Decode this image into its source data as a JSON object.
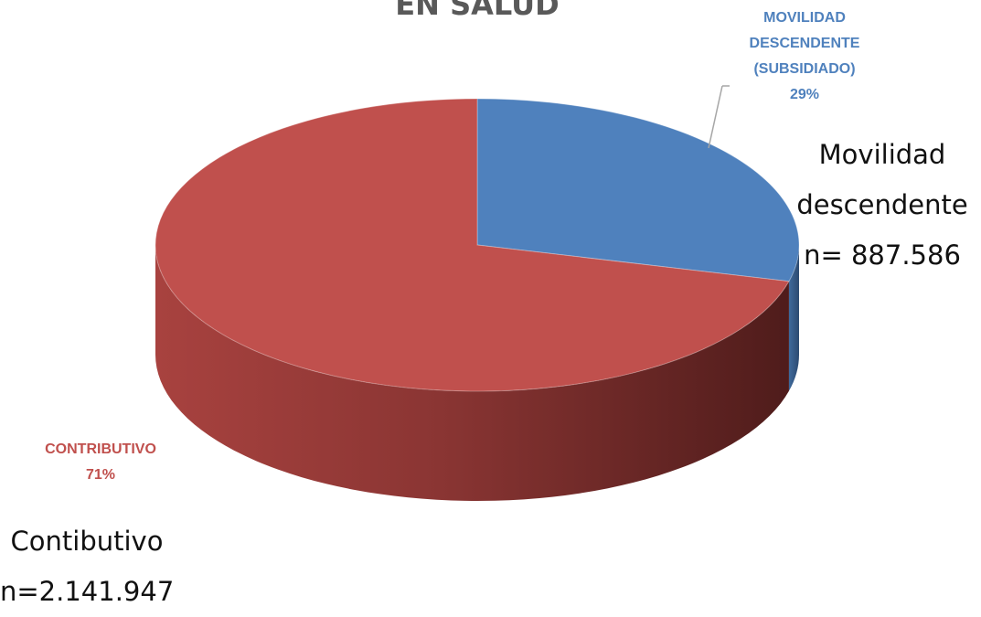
{
  "chart_data": {
    "type": "pie",
    "title": "EN SALUD",
    "categories": [
      "MOVILIDAD DESCENDENTE (SUBSIDIADO)",
      "CONTRIBUTIVO"
    ],
    "values": [
      29,
      71
    ],
    "value_labels": [
      "29%",
      "71%"
    ],
    "colors": [
      "#4f81bd",
      "#c0504d"
    ],
    "annotations": [
      "Movilidad\ndescendente\nn= 887.586",
      "Contibutivo\nn=2.141.947"
    ]
  }
}
